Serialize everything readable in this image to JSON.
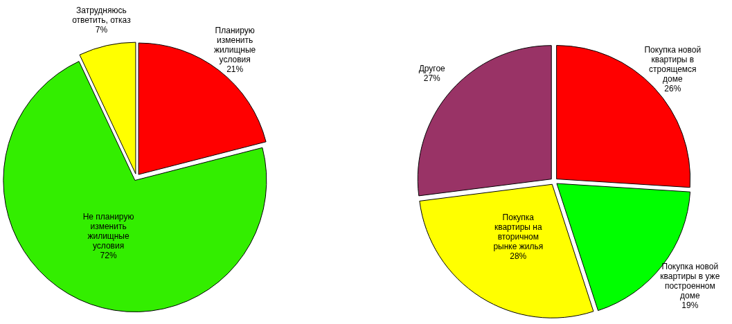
{
  "chart_data": [
    {
      "type": "pie",
      "categories": [
        "Планирую изменить жилищные условия",
        "Не планирую изменить жилищные условия",
        "Затрудняюсь ответить, отказ"
      ],
      "values": [
        21,
        72,
        7
      ],
      "value_labels": [
        "21%",
        "72%",
        "7%"
      ],
      "colors": [
        "#ff0000",
        "#33ee00",
        "#ffff00"
      ]
    },
    {
      "type": "pie",
      "categories": [
        "Покупка новой квартиры в строящемся доме",
        "Покупка новой квартиры в уже построенном доме",
        "Покупка квартиры на вторичном рынке жилья",
        "Другое"
      ],
      "values": [
        26,
        19,
        28,
        27
      ],
      "value_labels": [
        "26%",
        "19%",
        "28%",
        "27%"
      ],
      "colors": [
        "#ff0000",
        "#00ff00",
        "#ffff00",
        "#993366"
      ]
    }
  ]
}
